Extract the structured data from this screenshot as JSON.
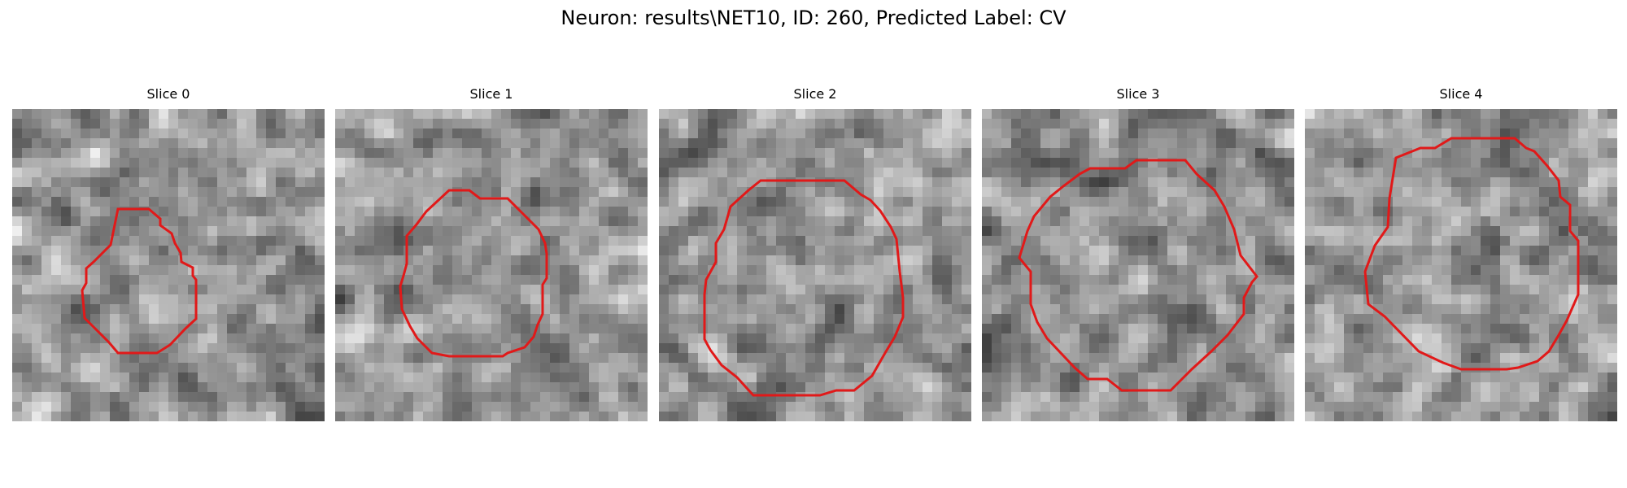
{
  "figure": {
    "title": "Neuron: results\\NET10, ID: 260, Predicted Label: CV",
    "contour_color": "#e11919",
    "colormap": "gray",
    "slices": [
      {
        "title": "Slice 0"
      },
      {
        "title": "Slice 1"
      },
      {
        "title": "Slice 2"
      },
      {
        "title": "Slice 3"
      },
      {
        "title": "Slice 4"
      }
    ]
  }
}
